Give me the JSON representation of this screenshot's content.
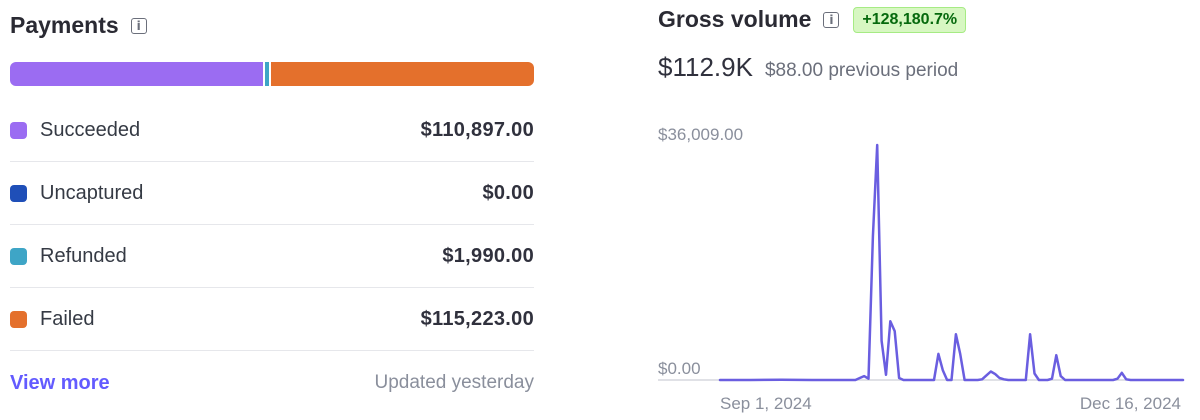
{
  "payments": {
    "title": "Payments",
    "info_icon": "info-icon",
    "statuses": [
      {
        "label": "Succeeded",
        "value": "$110,897.00",
        "amount": 110897.0,
        "color": "#9b6cf2"
      },
      {
        "label": "Uncaptured",
        "value": "$0.00",
        "amount": 0.0,
        "color": "#1f4fb8"
      },
      {
        "label": "Refunded",
        "value": "$1,990.00",
        "amount": 1990.0,
        "color": "#3ea5c6"
      },
      {
        "label": "Failed",
        "value": "$115,223.00",
        "amount": 115223.0,
        "color": "#e4702c"
      }
    ],
    "view_more": "View more",
    "updated": "Updated yesterday"
  },
  "gross_volume": {
    "title": "Gross volume",
    "info_icon": "info-icon",
    "growth_badge": "+128,180.7%",
    "current": "$112.9K",
    "previous": "$88.00 previous period",
    "line_color": "#6a5ee0"
  },
  "chart_data": {
    "type": "line",
    "title": "Gross volume",
    "y_tick_labels": [
      "$0.00",
      "$36,009.00"
    ],
    "ylim": [
      0,
      36009
    ],
    "x_tick_labels": [
      "Sep 1, 2024",
      "Dec 16, 2024"
    ],
    "grid": false,
    "series": [
      {
        "x": [
          "2024-09-01",
          "2024-09-08",
          "2024-09-15",
          "2024-09-22",
          "2024-09-29",
          "2024-10-01",
          "2024-10-02",
          "2024-10-03",
          "2024-10-04",
          "2024-10-05",
          "2024-10-06",
          "2024-10-07",
          "2024-10-08",
          "2024-10-09",
          "2024-10-10",
          "2024-10-11",
          "2024-10-12",
          "2024-10-13",
          "2024-10-14",
          "2024-10-15",
          "2024-10-16",
          "2024-10-17",
          "2024-10-18",
          "2024-10-19",
          "2024-10-20",
          "2024-10-21",
          "2024-10-22",
          "2024-10-23",
          "2024-10-24",
          "2024-10-25",
          "2024-10-26",
          "2024-10-27",
          "2024-10-28",
          "2024-10-29",
          "2024-10-30",
          "2024-10-31",
          "2024-11-01",
          "2024-11-02",
          "2024-11-03",
          "2024-11-04",
          "2024-11-05",
          "2024-11-06",
          "2024-11-07",
          "2024-11-08",
          "2024-11-09",
          "2024-11-10",
          "2024-11-11",
          "2024-11-12",
          "2024-11-13",
          "2024-11-14",
          "2024-11-15",
          "2024-11-16",
          "2024-11-17",
          "2024-11-18",
          "2024-11-19",
          "2024-11-20",
          "2024-11-21",
          "2024-11-22",
          "2024-11-23",
          "2024-11-24",
          "2024-11-25",
          "2024-11-26",
          "2024-11-27",
          "2024-11-28",
          "2024-11-29",
          "2024-11-30",
          "2024-12-01",
          "2024-12-02",
          "2024-12-03",
          "2024-12-04",
          "2024-12-05",
          "2024-12-06",
          "2024-12-07",
          "2024-12-08",
          "2024-12-09",
          "2024-12-10",
          "2024-12-11",
          "2024-12-12",
          "2024-12-13",
          "2024-12-14",
          "2024-12-15",
          "2024-12-16"
        ],
        "y": [
          0,
          0,
          50,
          0,
          0,
          0,
          0,
          300,
          600,
          200,
          22000,
          36009,
          6000,
          800,
          9000,
          7500,
          300,
          0,
          0,
          0,
          0,
          0,
          0,
          0,
          0,
          4000,
          1500,
          0,
          0,
          7000,
          4000,
          0,
          0,
          0,
          0,
          100,
          700,
          1300,
          900,
          300,
          100,
          0,
          0,
          0,
          0,
          0,
          7000,
          1000,
          0,
          0,
          0,
          200,
          3800,
          600,
          0,
          0,
          0,
          0,
          0,
          0,
          0,
          0,
          0,
          0,
          0,
          0,
          200,
          1100,
          100,
          0,
          0,
          0,
          0,
          0,
          0,
          0,
          0,
          0,
          0,
          0,
          0,
          0
        ]
      }
    ]
  }
}
